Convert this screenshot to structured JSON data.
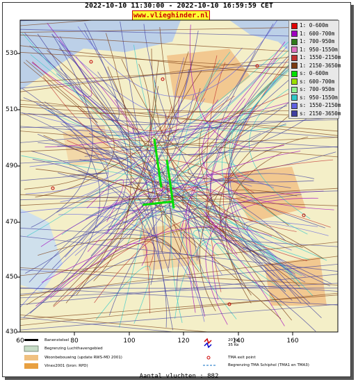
{
  "title": "2022-10-10 11:30:00 - 2022-10-10 16:59:59 CET",
  "site": "www.vlieghinder.nl",
  "y_ticks": [
    "530",
    "510",
    "490",
    "470",
    "450",
    "430"
  ],
  "x_ticks": [
    "60",
    "80",
    "100",
    "120",
    "140",
    "160"
  ],
  "legend": [
    {
      "label": "1: 0-600m",
      "color": "#e00000"
    },
    {
      "label": "1: 600-700m",
      "color": "#a000c0"
    },
    {
      "label": "1: 700-950m",
      "color": "#2f7a1a"
    },
    {
      "label": "1: 950-1550m",
      "color": "#e070c0"
    },
    {
      "label": "1: 1550-2150m",
      "color": "#c03030"
    },
    {
      "label": "1: 2150-3650m",
      "color": "#7a3a10"
    },
    {
      "label": "s: 0-600m",
      "color": "#00e000"
    },
    {
      "label": "s: 600-700m",
      "color": "#9be000"
    },
    {
      "label": "s: 700-950m",
      "color": "#90f090"
    },
    {
      "label": "s: 950-1550m",
      "color": "#30c8c8"
    },
    {
      "label": "s: 1550-2150m",
      "color": "#6060e0"
    },
    {
      "label": "s: 2150-3650m",
      "color": "#4040a0"
    }
  ],
  "bottom_legend": {
    "runway": "Banenstelsel",
    "airport_boundary": "Begrenzing Luchthavengebied",
    "housing": "Woonbebouwing (update RWS-MD 2001)",
    "vinex": "Vinex2001 (bron: RPD)",
    "kw20": "20 Ke",
    "kw35": "35 Ke",
    "tma_exit": "TMA exit point",
    "tma_boundary": "Begrenzing TMA Schiphol  (TMA1 en TMA3)"
  },
  "count": "Aantal vluchten : 882",
  "colors": {
    "water": "#bcd0e8",
    "land": "#f4efc8",
    "urban": "#f2c890"
  }
}
